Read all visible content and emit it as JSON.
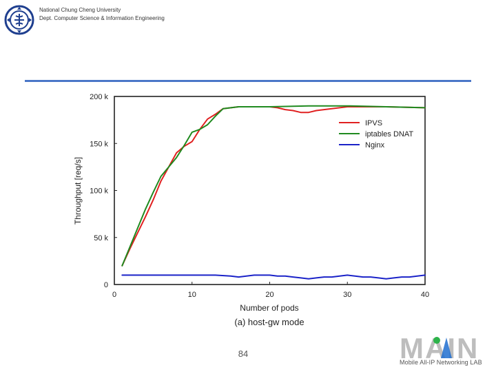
{
  "header": {
    "university": "National Chung Cheng University",
    "department": "Dept. Computer Science & Information Engineering"
  },
  "page_number": "84",
  "lab": {
    "logo_text": "MAIN",
    "name": "Mobile All-IP Networking LAB"
  },
  "colors": {
    "rule": "#4a76c8",
    "ipvs": "#e02020",
    "iptables": "#1f8a1f",
    "nginx": "#1a22c8"
  },
  "chart_data": {
    "type": "line",
    "title": "",
    "caption": "(a) host-gw mode",
    "xlabel": "Number of pods",
    "ylabel": "Throughput [req/s]",
    "xlim": [
      0,
      40
    ],
    "ylim": [
      0,
      200000
    ],
    "x_ticks": [
      0,
      10,
      20,
      30,
      40
    ],
    "x_tick_labels": [
      "0",
      "10",
      "20",
      "30",
      "40"
    ],
    "y_ticks": [
      0,
      50000,
      100000,
      150000,
      200000
    ],
    "y_tick_labels": [
      "0",
      "50 k",
      "100 k",
      "150 k",
      "200 k"
    ],
    "grid": false,
    "legend_position": "top-right",
    "series": [
      {
        "name": "IPVS",
        "color": "#e02020",
        "x": [
          1,
          2,
          3,
          4,
          5,
          6,
          7,
          8,
          9,
          10,
          11,
          12,
          13,
          14,
          15,
          16,
          17,
          18,
          19,
          20,
          21,
          22,
          23,
          24,
          25,
          26,
          27,
          28,
          29,
          30,
          35,
          40
        ],
        "y": [
          20000,
          38000,
          55000,
          72000,
          90000,
          110000,
          125000,
          140000,
          147000,
          152000,
          165000,
          176000,
          181000,
          187000,
          188000,
          189000,
          189000,
          189000,
          189000,
          189000,
          188000,
          186000,
          185000,
          183000,
          183000,
          185000,
          186000,
          187000,
          188000,
          189000,
          189000,
          188000
        ]
      },
      {
        "name": "iptables DNAT",
        "color": "#1f8a1f",
        "x": [
          1,
          2,
          3,
          4,
          5,
          6,
          7,
          8,
          9,
          10,
          11,
          12,
          13,
          14,
          15,
          16,
          17,
          18,
          20,
          25,
          30,
          35,
          40
        ],
        "y": [
          20000,
          40000,
          60000,
          80000,
          98000,
          115000,
          125000,
          135000,
          148000,
          162000,
          165000,
          170000,
          179000,
          187000,
          188000,
          189000,
          189000,
          189000,
          189000,
          190000,
          190000,
          189000,
          188000
        ]
      },
      {
        "name": "Nginx",
        "color": "#1a22c8",
        "x": [
          1,
          5,
          10,
          13,
          15,
          16,
          17,
          18,
          19,
          20,
          21,
          22,
          23,
          24,
          25,
          26,
          27,
          28,
          29,
          30,
          31,
          32,
          33,
          34,
          35,
          36,
          37,
          38,
          39,
          40
        ],
        "y": [
          10000,
          10000,
          10000,
          10000,
          9000,
          8000,
          9000,
          10000,
          10000,
          10000,
          9000,
          9000,
          8000,
          7000,
          6000,
          7000,
          8000,
          8000,
          9000,
          10000,
          9000,
          8000,
          8000,
          7000,
          6000,
          7000,
          8000,
          8000,
          9000,
          10000
        ]
      }
    ]
  }
}
